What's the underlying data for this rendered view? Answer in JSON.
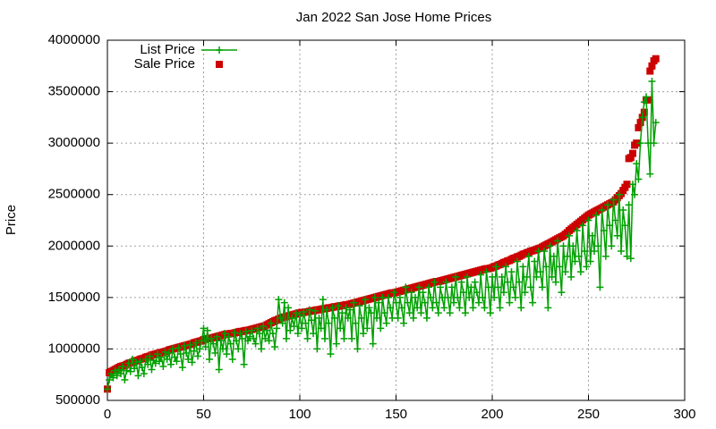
{
  "chart_data": {
    "type": "line",
    "title": "Jan 2022 San Jose Home Prices",
    "ylabel": "Price",
    "xlim": [
      0,
      300
    ],
    "xticks": [
      0,
      50,
      100,
      150,
      200,
      250,
      300
    ],
    "ylim": [
      500000,
      4000000
    ],
    "yticks": [
      500000,
      1000000,
      1500000,
      2000000,
      2500000,
      3000000,
      3500000,
      4000000
    ],
    "grid": true,
    "legend": "top-left",
    "x": [
      0,
      1,
      2,
      3,
      4,
      5,
      6,
      7,
      8,
      9,
      10,
      11,
      12,
      13,
      14,
      15,
      16,
      17,
      18,
      19,
      20,
      21,
      22,
      23,
      24,
      25,
      26,
      27,
      28,
      29,
      30,
      31,
      32,
      33,
      34,
      35,
      36,
      37,
      38,
      39,
      40,
      41,
      42,
      43,
      44,
      45,
      46,
      47,
      48,
      49,
      50,
      51,
      52,
      53,
      54,
      55,
      56,
      57,
      58,
      59,
      60,
      61,
      62,
      63,
      64,
      65,
      66,
      67,
      68,
      69,
      70,
      71,
      72,
      73,
      74,
      75,
      76,
      77,
      78,
      79,
      80,
      81,
      82,
      83,
      84,
      85,
      86,
      87,
      88,
      89,
      90,
      91,
      92,
      93,
      94,
      95,
      96,
      97,
      98,
      99,
      100,
      101,
      102,
      103,
      104,
      105,
      106,
      107,
      108,
      109,
      110,
      111,
      112,
      113,
      114,
      115,
      116,
      117,
      118,
      119,
      120,
      121,
      122,
      123,
      124,
      125,
      126,
      127,
      128,
      129,
      130,
      131,
      132,
      133,
      134,
      135,
      136,
      137,
      138,
      139,
      140,
      141,
      142,
      143,
      144,
      145,
      146,
      147,
      148,
      149,
      150,
      151,
      152,
      153,
      154,
      155,
      156,
      157,
      158,
      159,
      160,
      161,
      162,
      163,
      164,
      165,
      166,
      167,
      168,
      169,
      170,
      171,
      172,
      173,
      174,
      175,
      176,
      177,
      178,
      179,
      180,
      181,
      182,
      183,
      184,
      185,
      186,
      187,
      188,
      189,
      190,
      191,
      192,
      193,
      194,
      195,
      196,
      197,
      198,
      199,
      200,
      201,
      202,
      203,
      204,
      205,
      206,
      207,
      208,
      209,
      210,
      211,
      212,
      213,
      214,
      215,
      216,
      217,
      218,
      219,
      220,
      221,
      222,
      223,
      224,
      225,
      226,
      227,
      228,
      229,
      230,
      231,
      232,
      233,
      234,
      235,
      236,
      237,
      238,
      239,
      240,
      241,
      242,
      243,
      244,
      245,
      246,
      247,
      248,
      249,
      250,
      251,
      252,
      253,
      254,
      255,
      256,
      257,
      258,
      259,
      260,
      261,
      262,
      263,
      264,
      265,
      266,
      267,
      268,
      269,
      270,
      271,
      272,
      273,
      274,
      275,
      276,
      277,
      278,
      279,
      280,
      281,
      282,
      283,
      284,
      285
    ],
    "series": [
      {
        "name": "List Price",
        "color": "#00a000",
        "marker": "plus",
        "values": [
          610000,
          700000,
          760000,
          720000,
          790000,
          740000,
          800000,
          760000,
          830000,
          700000,
          790000,
          860000,
          780000,
          900000,
          810000,
          870000,
          740000,
          880000,
          820000,
          760000,
          900000,
          850000,
          930000,
          800000,
          890000,
          860000,
          950000,
          880000,
          920000,
          830000,
          970000,
          900000,
          960000,
          850000,
          1000000,
          920000,
          880000,
          1010000,
          950000,
          820000,
          1030000,
          960000,
          900000,
          1040000,
          870000,
          980000,
          1060000,
          930000,
          1000000,
          1080000,
          1200000,
          1020000,
          1180000,
          900000,
          1100000,
          1050000,
          960000,
          1120000,
          800000,
          1080000,
          1000000,
          1150000,
          950000,
          1120000,
          1050000,
          900000,
          1160000,
          1080000,
          1000000,
          1150000,
          1100000,
          850000,
          1170000,
          1080000,
          1120000,
          1180000,
          1100000,
          1050000,
          1200000,
          1150000,
          1000000,
          1220000,
          1100000,
          1180000,
          1080000,
          1250000,
          1150000,
          1020000,
          1200000,
          1480000,
          1300000,
          1250000,
          1450000,
          1100000,
          1400000,
          1180000,
          1300000,
          1220000,
          1350000,
          1150000,
          1330000,
          1200000,
          1360000,
          1250000,
          1100000,
          1380000,
          1280000,
          1150000,
          1370000,
          1000000,
          1300000,
          1200000,
          1480000,
          1100000,
          1380000,
          1250000,
          950000,
          1400000,
          1300000,
          1050000,
          1420000,
          1200000,
          1350000,
          1100000,
          1400000,
          1300000,
          1380000,
          1100000,
          1450000,
          1250000,
          1000000,
          1420000,
          1300000,
          1150000,
          1480000,
          1200000,
          1400000,
          1350000,
          1050000,
          1500000,
          1300000,
          1450000,
          1200000,
          1500000,
          1350000,
          1250000,
          1500000,
          1400000,
          1300000,
          1550000,
          1450000,
          1300000,
          1500000,
          1400000,
          1250000,
          1600000,
          1450000,
          1350000,
          1550000,
          1300000,
          1500000,
          1400000,
          1600000,
          1350000,
          1550000,
          1450000,
          1300000,
          1600000,
          1500000,
          1400000,
          1650000,
          1450000,
          1350000,
          1600000,
          1500000,
          1400000,
          1650000,
          1500000,
          1350000,
          1600000,
          1450000,
          1700000,
          1500000,
          1400000,
          1650000,
          1550000,
          1350000,
          1700000,
          1500000,
          1600000,
          1400000,
          1650000,
          1550000,
          1450000,
          1720000,
          1500000,
          1400000,
          1750000,
          1600000,
          1350000,
          1700000,
          1500000,
          1800000,
          1600000,
          1400000,
          1700000,
          1550000,
          1800000,
          1650000,
          1450000,
          1750000,
          1600000,
          1500000,
          1850000,
          1650000,
          1400000,
          1800000,
          1550000,
          1700000,
          1900000,
          1600000,
          1450000,
          1850000,
          1700000,
          1950000,
          1750000,
          1600000,
          1950000,
          1800000,
          1400000,
          2000000,
          1700000,
          1900000,
          1650000,
          2050000,
          1800000,
          1550000,
          2000000,
          1750000,
          1900000,
          2100000,
          1700000,
          2000000,
          1850000,
          2150000,
          1900000,
          1750000,
          2200000,
          1950000,
          1800000,
          2250000,
          1850000,
          2100000,
          1950000,
          2300000,
          2000000,
          1600000,
          2350000,
          2150000,
          1900000,
          2400000,
          2200000,
          2000000,
          2450000,
          2250000,
          2100000,
          2500000,
          1950000,
          2350000,
          2200000,
          1900000,
          2400000,
          1880000,
          2600000,
          2500000,
          2800000,
          2650000,
          3000000,
          3250000,
          3400000,
          3450000,
          3000000,
          2700000,
          3600000,
          3000000,
          3200000
        ]
      },
      {
        "name": "Sale Price",
        "color": "#cc0000",
        "marker": "square",
        "values": [
          610000,
          770000,
          780000,
          790000,
          800000,
          810000,
          820000,
          830000,
          835000,
          840000,
          850000,
          860000,
          865000,
          870000,
          880000,
          885000,
          890000,
          900000,
          905000,
          910000,
          920000,
          925000,
          930000,
          940000,
          945000,
          950000,
          955000,
          960000,
          965000,
          970000,
          975000,
          980000,
          990000,
          995000,
          1000000,
          1005000,
          1010000,
          1015000,
          1020000,
          1025000,
          1030000,
          1035000,
          1040000,
          1045000,
          1050000,
          1060000,
          1065000,
          1070000,
          1075000,
          1080000,
          1090000,
          1095000,
          1100000,
          1100000,
          1105000,
          1110000,
          1115000,
          1120000,
          1125000,
          1130000,
          1135000,
          1140000,
          1145000,
          1145000,
          1150000,
          1150000,
          1155000,
          1160000,
          1165000,
          1170000,
          1170000,
          1175000,
          1180000,
          1180000,
          1185000,
          1190000,
          1195000,
          1200000,
          1205000,
          1210000,
          1215000,
          1220000,
          1225000,
          1235000,
          1245000,
          1255000,
          1265000,
          1275000,
          1280000,
          1290000,
          1300000,
          1305000,
          1310000,
          1315000,
          1320000,
          1325000,
          1330000,
          1335000,
          1340000,
          1345000,
          1350000,
          1355000,
          1355000,
          1360000,
          1360000,
          1365000,
          1370000,
          1370000,
          1375000,
          1380000,
          1380000,
          1385000,
          1390000,
          1390000,
          1395000,
          1400000,
          1400000,
          1405000,
          1410000,
          1410000,
          1415000,
          1420000,
          1420000,
          1425000,
          1430000,
          1430000,
          1435000,
          1440000,
          1445000,
          1450000,
          1455000,
          1460000,
          1465000,
          1470000,
          1475000,
          1480000,
          1485000,
          1490000,
          1495000,
          1500000,
          1505000,
          1510000,
          1515000,
          1520000,
          1525000,
          1530000,
          1535000,
          1540000,
          1545000,
          1545000,
          1550000,
          1555000,
          1560000,
          1565000,
          1570000,
          1575000,
          1580000,
          1585000,
          1590000,
          1595000,
          1600000,
          1605000,
          1610000,
          1615000,
          1620000,
          1625000,
          1630000,
          1635000,
          1640000,
          1645000,
          1650000,
          1655000,
          1655000,
          1660000,
          1665000,
          1670000,
          1675000,
          1680000,
          1685000,
          1690000,
          1695000,
          1700000,
          1705000,
          1710000,
          1715000,
          1720000,
          1725000,
          1730000,
          1735000,
          1740000,
          1745000,
          1750000,
          1755000,
          1760000,
          1765000,
          1770000,
          1775000,
          1780000,
          1780000,
          1785000,
          1790000,
          1800000,
          1805000,
          1815000,
          1820000,
          1830000,
          1840000,
          1845000,
          1855000,
          1860000,
          1870000,
          1880000,
          1885000,
          1895000,
          1900000,
          1910000,
          1920000,
          1925000,
          1935000,
          1940000,
          1950000,
          1955000,
          1960000,
          1965000,
          1975000,
          1980000,
          1990000,
          2000000,
          2010000,
          2020000,
          2030000,
          2040000,
          2050000,
          2060000,
          2070000,
          2080000,
          2090000,
          2100000,
          2115000,
          2130000,
          2150000,
          2165000,
          2180000,
          2195000,
          2210000,
          2225000,
          2240000,
          2255000,
          2270000,
          2285000,
          2300000,
          2310000,
          2320000,
          2330000,
          2340000,
          2350000,
          2360000,
          2370000,
          2380000,
          2390000,
          2400000,
          2410000,
          2420000,
          2430000,
          2450000,
          2470000,
          2490000,
          2510000,
          2540000,
          2570000,
          2600000,
          2850000,
          2860000,
          2900000,
          2980000,
          3000000,
          3150000,
          3200000,
          3250000,
          3300000,
          3420000,
          3420000,
          3700000,
          3750000,
          3800000,
          3820000
        ]
      }
    ]
  }
}
